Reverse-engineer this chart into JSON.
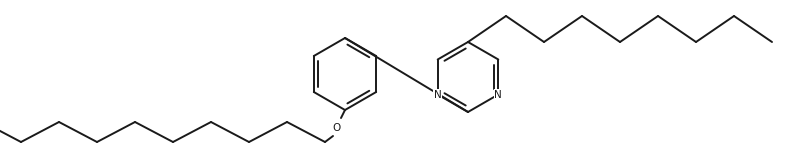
{
  "bg_color": "#ffffff",
  "line_color": "#1a1a1a",
  "line_width": 1.4,
  "figsize": [
    8.04,
    1.52
  ],
  "dpi": 100,
  "n_fontsize": 7.5,
  "o_fontsize": 7.5,
  "xlim": [
    0,
    804
  ],
  "ylim": [
    0,
    152
  ]
}
